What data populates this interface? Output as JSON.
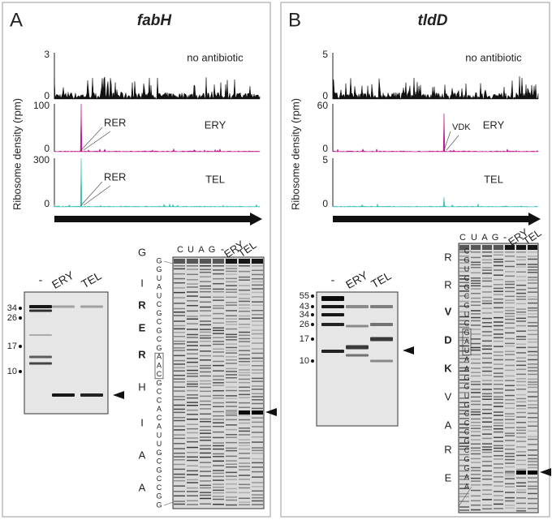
{
  "panels": [
    {
      "letter": "A",
      "gene": "fabH",
      "y_axis_label": "Ribosome density (rpm)",
      "profiles": [
        {
          "yticks": [
            3,
            0
          ],
          "label": "no antibiotic"
        },
        {
          "yticks": [
            100,
            0
          ],
          "peak_label": "RER",
          "label": "ERY"
        },
        {
          "yticks": [
            300,
            0
          ],
          "peak_label": "RER",
          "label": "TEL"
        }
      ],
      "gel_lanes": [
        "-",
        "ERY",
        "TEL"
      ],
      "gel_markers": [
        34,
        26,
        17,
        10
      ],
      "seq_lanes": [
        "C",
        "U",
        "A",
        "G",
        "-",
        "ERY",
        "TEL"
      ],
      "amino_acids": [
        "G",
        "I",
        "R",
        "E",
        "R",
        "H",
        "I",
        "A",
        "A"
      ],
      "sequence": [
        "G",
        "G",
        "U",
        "A",
        "U",
        "C",
        "G",
        "C",
        "G",
        "C",
        "G",
        "A",
        "A",
        "C",
        "G",
        "C",
        "C",
        "A",
        "C",
        "A",
        "U",
        "U",
        "G",
        "C",
        "G",
        "C",
        "C",
        "G",
        "G"
      ]
    },
    {
      "letter": "B",
      "gene": "tldD",
      "y_axis_label": "Ribosome density (rpm)",
      "profiles": [
        {
          "yticks": [
            5,
            0
          ],
          "label": "no antibiotic"
        },
        {
          "yticks": [
            60,
            0
          ],
          "peak_label": "VDK",
          "label": "ERY"
        },
        {
          "yticks": [
            5,
            0
          ],
          "label": "TEL"
        }
      ],
      "gel_lanes": [
        "-",
        "ERY",
        "TEL"
      ],
      "gel_markers": [
        55,
        43,
        34,
        26,
        17,
        10
      ],
      "seq_lanes": [
        "C",
        "U",
        "A",
        "G",
        "-",
        "ERY",
        "TEL"
      ],
      "amino_acids": [
        "R",
        "R",
        "V",
        "D",
        "K",
        "V",
        "A",
        "R",
        "E"
      ],
      "sequence": [
        "C",
        "G",
        "U",
        "C",
        "G",
        "C",
        "G",
        "U",
        "C",
        "G",
        "A",
        "U",
        "A",
        "A",
        "G",
        "G",
        "U",
        "G",
        "C",
        "C",
        "C",
        "G",
        "C",
        "G",
        "G",
        "A",
        "A"
      ]
    }
  ]
}
